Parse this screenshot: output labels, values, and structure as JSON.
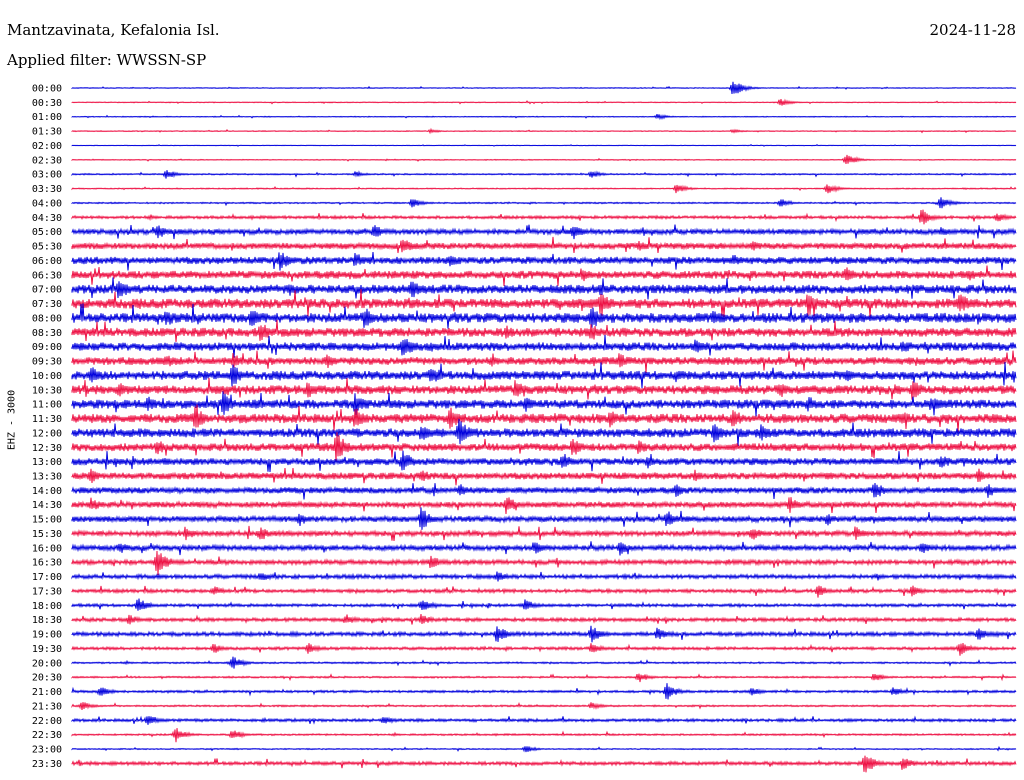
{
  "header": {
    "station": "Mantzavinata, Kefalonia Isl.",
    "date": "2024-11-28",
    "filter": "Applied filter: WWSSN-SP",
    "channel": "EHZ - 3000"
  },
  "colors": {
    "even_trace": "#0000dd",
    "odd_trace": "#ee1144",
    "background": "#ffffff",
    "label": "#000000"
  },
  "chart_data": {
    "type": "helicorder",
    "title": "Mantzavinata, Kefalonia Isl.",
    "subtitle": "Applied filter: WWSSN-SP",
    "ylabel": "EHZ - 3000",
    "row_labels": [
      "00:00",
      "00:30",
      "01:00",
      "01:30",
      "02:00",
      "02:30",
      "03:00",
      "03:30",
      "04:00",
      "04:30",
      "05:00",
      "05:30",
      "06:00",
      "06:30",
      "07:00",
      "07:30",
      "08:00",
      "08:30",
      "09:00",
      "09:30",
      "10:00",
      "10:30",
      "11:00",
      "11:30",
      "12:00",
      "12:30",
      "13:00",
      "13:30",
      "14:00",
      "14:30",
      "15:00",
      "15:30",
      "16:00",
      "16:30",
      "17:00",
      "17:30",
      "18:00",
      "18:30",
      "19:00",
      "19:30",
      "20:00",
      "20:30",
      "21:00",
      "21:30",
      "22:00",
      "22:30",
      "23:00",
      "23:30"
    ],
    "noise_level": [
      0.3,
      0.3,
      0.3,
      0.3,
      0.2,
      0.3,
      0.5,
      0.4,
      0.5,
      1.0,
      1.8,
      2.2,
      2.6,
      2.8,
      3.2,
      3.5,
      3.5,
      3.2,
      3.0,
      2.8,
      3.2,
      3.2,
      3.2,
      3.4,
      3.2,
      2.8,
      2.5,
      2.4,
      2.2,
      2.0,
      2.0,
      1.8,
      1.8,
      1.6,
      1.4,
      1.2,
      1.0,
      1.2,
      1.4,
      1.0,
      0.6,
      0.6,
      0.8,
      0.6,
      1.0,
      0.6,
      0.4,
      1.2
    ],
    "events": [
      [
        [
          0.7,
          9
        ]
      ],
      [
        [
          0.75,
          4
        ]
      ],
      [
        [
          0.62,
          3
        ]
      ],
      [
        [
          0.38,
          2
        ],
        [
          0.7,
          2
        ]
      ],
      [],
      [
        [
          0.82,
          7
        ]
      ],
      [
        [
          0.1,
          5
        ],
        [
          0.3,
          3
        ],
        [
          0.55,
          4
        ]
      ],
      [
        [
          0.64,
          5
        ],
        [
          0.8,
          6
        ]
      ],
      [
        [
          0.36,
          5
        ],
        [
          0.75,
          5
        ],
        [
          0.92,
          7
        ]
      ],
      [
        [
          0.9,
          9
        ],
        [
          0.98,
          5
        ]
      ],
      [
        [
          0.09,
          9
        ],
        [
          0.32,
          8
        ],
        [
          0.53,
          9
        ],
        [
          0.92,
          6
        ]
      ],
      [
        [
          0.35,
          10
        ],
        [
          0.6,
          6
        ],
        [
          0.72,
          6
        ]
      ],
      [
        [
          0.22,
          12
        ],
        [
          0.3,
          8
        ],
        [
          0.4,
          8
        ],
        [
          0.7,
          7
        ]
      ],
      [
        [
          0.54,
          8
        ],
        [
          0.82,
          9
        ],
        [
          0.95,
          7
        ]
      ],
      [
        [
          0.05,
          14
        ],
        [
          0.23,
          8
        ],
        [
          0.36,
          11
        ],
        [
          0.56,
          7
        ]
      ],
      [
        [
          0.56,
          14
        ],
        [
          0.78,
          14
        ],
        [
          0.94,
          13
        ]
      ],
      [
        [
          0.1,
          10
        ],
        [
          0.19,
          12
        ],
        [
          0.31,
          12
        ],
        [
          0.55,
          14
        ],
        [
          0.68,
          10
        ]
      ],
      [
        [
          0.2,
          12
        ],
        [
          0.46,
          8
        ],
        [
          0.55,
          10
        ]
      ],
      [
        [
          0.35,
          13
        ],
        [
          0.66,
          8
        ],
        [
          0.88,
          8
        ]
      ],
      [
        [
          0.1,
          8
        ],
        [
          0.17,
          9
        ],
        [
          0.27,
          8
        ],
        [
          0.58,
          9
        ]
      ],
      [
        [
          0.02,
          10
        ],
        [
          0.17,
          13
        ],
        [
          0.38,
          12
        ],
        [
          0.64,
          8
        ],
        [
          0.82,
          8
        ]
      ],
      [
        [
          0.05,
          9
        ],
        [
          0.25,
          10
        ],
        [
          0.47,
          12
        ],
        [
          0.75,
          9
        ],
        [
          0.89,
          13
        ]
      ],
      [
        [
          0.08,
          9
        ],
        [
          0.16,
          14
        ],
        [
          0.3,
          12
        ],
        [
          0.48,
          9
        ],
        [
          0.78,
          9
        ],
        [
          0.91,
          9
        ]
      ],
      [
        [
          0.13,
          14
        ],
        [
          0.3,
          12
        ],
        [
          0.4,
          13
        ],
        [
          0.57,
          10
        ],
        [
          0.7,
          12
        ],
        [
          0.88,
          8
        ]
      ],
      [
        [
          0.37,
          10
        ],
        [
          0.41,
          16
        ],
        [
          0.68,
          11
        ],
        [
          0.73,
          9
        ]
      ],
      [
        [
          0.09,
          9
        ],
        [
          0.28,
          17
        ],
        [
          0.53,
          11
        ],
        [
          0.6,
          8
        ]
      ],
      [
        [
          0.35,
          14
        ],
        [
          0.52,
          10
        ],
        [
          0.61,
          8
        ],
        [
          0.92,
          9
        ]
      ],
      [
        [
          0.02,
          8
        ],
        [
          0.37,
          8
        ],
        [
          0.66,
          7
        ],
        [
          0.96,
          8
        ]
      ],
      [
        [
          0.41,
          8
        ],
        [
          0.64,
          7
        ],
        [
          0.85,
          11
        ],
        [
          0.97,
          8
        ]
      ],
      [
        [
          0.02,
          8
        ],
        [
          0.46,
          11
        ],
        [
          0.76,
          9
        ]
      ],
      [
        [
          0.24,
          8
        ],
        [
          0.37,
          13
        ],
        [
          0.63,
          10
        ],
        [
          0.8,
          7
        ]
      ],
      [
        [
          0.12,
          8
        ],
        [
          0.2,
          8
        ],
        [
          0.72,
          8
        ],
        [
          0.83,
          8
        ]
      ],
      [
        [
          0.05,
          7
        ],
        [
          0.49,
          7
        ],
        [
          0.58,
          8
        ],
        [
          0.9,
          7
        ]
      ],
      [
        [
          0.09,
          16
        ],
        [
          0.38,
          8
        ]
      ],
      [
        [
          0.2,
          6
        ],
        [
          0.45,
          6
        ]
      ],
      [
        [
          0.15,
          6
        ],
        [
          0.79,
          7
        ],
        [
          0.89,
          6
        ]
      ],
      [
        [
          0.07,
          8
        ],
        [
          0.37,
          7
        ],
        [
          0.48,
          7
        ]
      ],
      [
        [
          0.06,
          6
        ],
        [
          0.29,
          6
        ],
        [
          0.37,
          6
        ]
      ],
      [
        [
          0.45,
          10
        ],
        [
          0.55,
          10
        ],
        [
          0.62,
          7
        ],
        [
          0.96,
          7
        ]
      ],
      [
        [
          0.15,
          6
        ],
        [
          0.25,
          6
        ],
        [
          0.55,
          6
        ],
        [
          0.94,
          8
        ]
      ],
      [
        [
          0.17,
          7
        ]
      ],
      [
        [
          0.6,
          6
        ],
        [
          0.85,
          5
        ]
      ],
      [
        [
          0.03,
          6
        ],
        [
          0.63,
          9
        ],
        [
          0.72,
          5
        ],
        [
          0.87,
          5
        ]
      ],
      [
        [
          0.01,
          5
        ],
        [
          0.55,
          4
        ]
      ],
      [
        [
          0.08,
          7
        ],
        [
          0.33,
          5
        ]
      ],
      [
        [
          0.11,
          8
        ],
        [
          0.17,
          6
        ]
      ],
      [
        [
          0.48,
          4
        ]
      ],
      [
        [
          0.84,
          12
        ],
        [
          0.88,
          8
        ]
      ]
    ]
  }
}
